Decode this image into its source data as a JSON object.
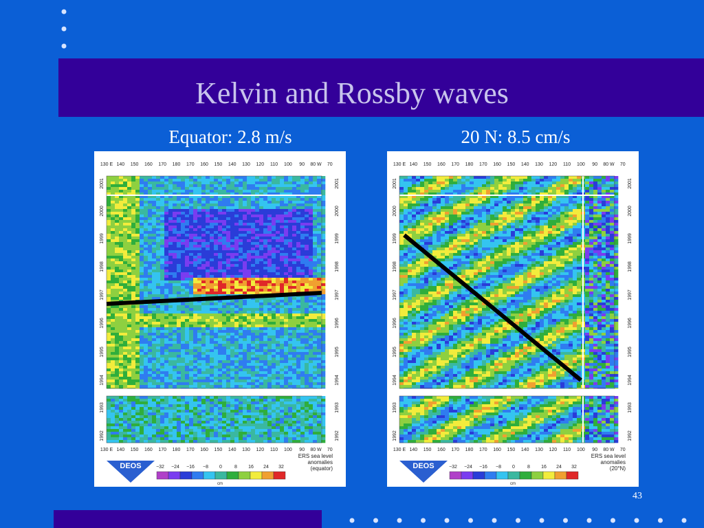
{
  "slide": {
    "title": "Kelvin and Rossby waves",
    "page_number": "43"
  },
  "panels": [
    {
      "heading": "Equator: 2.8 m/s",
      "longitudes": [
        "130 E",
        "140",
        "150",
        "160",
        "170",
        "180",
        "170",
        "160",
        "150",
        "140",
        "130",
        "120",
        "110",
        "100",
        "90",
        "80 W",
        "70"
      ],
      "years": [
        "2001",
        "2000",
        "1999",
        "1998",
        "1997",
        "1996",
        "1995",
        "1994",
        "1993",
        "1992"
      ],
      "legend_title": [
        "ERS sea level",
        "anomalies",
        "(equator)"
      ],
      "logo": "DEOS",
      "colorbar_ticks": [
        "−32",
        "−24",
        "−16",
        "−8",
        "0",
        "8",
        "16",
        "24",
        "32"
      ],
      "colorbar_unit": "cm"
    },
    {
      "heading": "20 N: 8.5 cm/s",
      "longitudes": [
        "130 E",
        "140",
        "150",
        "160",
        "170",
        "180",
        "170",
        "160",
        "150",
        "140",
        "130",
        "120",
        "110",
        "100",
        "90",
        "80 W",
        "70"
      ],
      "years": [
        "2001",
        "2000",
        "1999",
        "1998",
        "1997",
        "1996",
        "1995",
        "1994",
        "1993",
        "1992"
      ],
      "legend_title": [
        "ERS sea level",
        "anomalies",
        "(20°N)"
      ],
      "logo": "DEOS",
      "colorbar_ticks": [
        "−32",
        "−24",
        "−16",
        "−8",
        "0",
        "8",
        "16",
        "24",
        "32"
      ],
      "colorbar_unit": "cm"
    }
  ]
}
